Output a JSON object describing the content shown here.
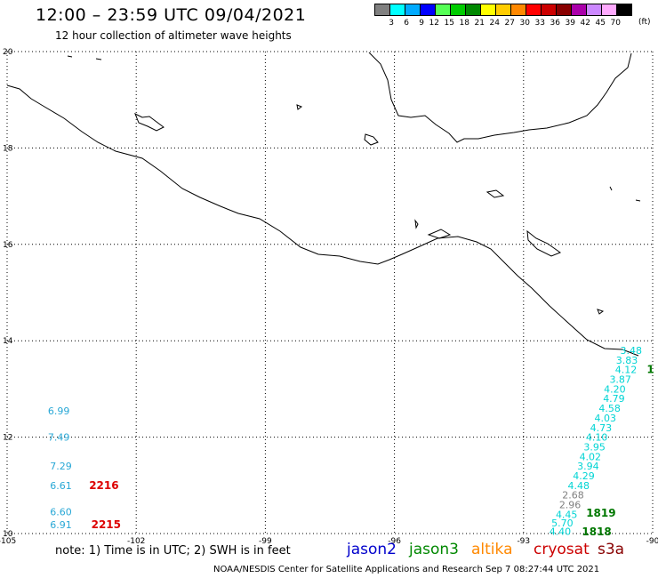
{
  "header": {
    "title": "12:00 – 23:59 UTC 09/04/2021",
    "subtitle": "12 hour collection of altimeter wave heights"
  },
  "colorbar": {
    "unit": "(ft)",
    "swatches": [
      {
        "color": "#808080",
        "label": "3"
      },
      {
        "color": "#00ffff",
        "label": "6"
      },
      {
        "color": "#00aaff",
        "label": "9"
      },
      {
        "color": "#0000ff",
        "label": "12"
      },
      {
        "color": "#55ff55",
        "label": "15"
      },
      {
        "color": "#00cc00",
        "label": "18"
      },
      {
        "color": "#008800",
        "label": "21"
      },
      {
        "color": "#ffff00",
        "label": "24"
      },
      {
        "color": "#ffcc00",
        "label": "27"
      },
      {
        "color": "#ff8800",
        "label": "30"
      },
      {
        "color": "#ff0000",
        "label": "33"
      },
      {
        "color": "#cc0000",
        "label": "36"
      },
      {
        "color": "#880000",
        "label": "39"
      },
      {
        "color": "#aa00aa",
        "label": "42"
      },
      {
        "color": "#cc88ff",
        "label": "45"
      },
      {
        "color": "#ffaaff",
        "label": "70"
      },
      {
        "color": "#000000",
        "label": ""
      }
    ]
  },
  "map": {
    "lon_ticks": [
      "-105",
      "-102",
      "-99",
      "-96",
      "-93",
      "-90"
    ],
    "lat_ticks": [
      "10",
      "12",
      "14",
      "16",
      "18",
      "20"
    ],
    "lon_range": [
      -105,
      -90
    ],
    "lat_range": [
      10,
      20
    ],
    "coast_color": "#000000",
    "grid": "dotted"
  },
  "observations": [
    {
      "text": "6.99",
      "lon": -103.8,
      "lat": 12.55,
      "color": "#29a8d6"
    },
    {
      "text": "7.49",
      "lon": -103.8,
      "lat": 12.0,
      "color": "#29a8d6"
    },
    {
      "text": "7.29",
      "lon": -103.75,
      "lat": 11.4,
      "color": "#29a8d6"
    },
    {
      "text": "6.61",
      "lon": -103.75,
      "lat": 11.0,
      "color": "#29a8d6"
    },
    {
      "text": "6.60",
      "lon": -103.75,
      "lat": 10.45,
      "color": "#29a8d6"
    },
    {
      "text": "6.91",
      "lon": -103.75,
      "lat": 10.18,
      "color": "#29a8d6"
    },
    {
      "text": "3.48",
      "lon": -90.5,
      "lat": 13.8,
      "color": "#00d4d4"
    },
    {
      "text": "3.83",
      "lon": -90.6,
      "lat": 13.6,
      "color": "#00d4d4"
    },
    {
      "text": "4.12",
      "lon": -90.62,
      "lat": 13.4,
      "color": "#00d4d4"
    },
    {
      "text": "3.87",
      "lon": -90.75,
      "lat": 13.2,
      "color": "#00d4d4"
    },
    {
      "text": "4.20",
      "lon": -90.88,
      "lat": 13.0,
      "color": "#00d4d4"
    },
    {
      "text": "4.79",
      "lon": -90.9,
      "lat": 12.8,
      "color": "#00d4d4"
    },
    {
      "text": "4.58",
      "lon": -91.0,
      "lat": 12.6,
      "color": "#00d4d4"
    },
    {
      "text": "4.03",
      "lon": -91.1,
      "lat": 12.4,
      "color": "#00d4d4"
    },
    {
      "text": "4.73",
      "lon": -91.2,
      "lat": 12.2,
      "color": "#00d4d4"
    },
    {
      "text": "4.10",
      "lon": -91.3,
      "lat": 12.0,
      "color": "#00d4d4"
    },
    {
      "text": "3.95",
      "lon": -91.35,
      "lat": 11.8,
      "color": "#00d4d4"
    },
    {
      "text": "4.02",
      "lon": -91.45,
      "lat": 11.6,
      "color": "#00d4d4"
    },
    {
      "text": "3.94",
      "lon": -91.5,
      "lat": 11.4,
      "color": "#00d4d4"
    },
    {
      "text": "4.29",
      "lon": -91.6,
      "lat": 11.2,
      "color": "#00d4d4"
    },
    {
      "text": "4.48",
      "lon": -91.72,
      "lat": 11.0,
      "color": "#00d4d4"
    },
    {
      "text": "2.68",
      "lon": -91.85,
      "lat": 10.8,
      "color": "#808080"
    },
    {
      "text": "2.96",
      "lon": -91.92,
      "lat": 10.6,
      "color": "#808080"
    },
    {
      "text": "4.45",
      "lon": -92.0,
      "lat": 10.4,
      "color": "#00d4d4"
    },
    {
      "text": "5.70",
      "lon": -92.1,
      "lat": 10.22,
      "color": "#00d4d4"
    },
    {
      "text": "4.40",
      "lon": -92.15,
      "lat": 10.05,
      "color": "#00d4d4"
    }
  ],
  "time_labels": [
    {
      "text": "2216",
      "lon": -102.75,
      "lat": 11.0,
      "color": "#dd0000"
    },
    {
      "text": "2215",
      "lon": -102.7,
      "lat": 10.18,
      "color": "#dd0000"
    },
    {
      "text": "1819",
      "lon": -91.2,
      "lat": 10.42,
      "color": "#007700"
    },
    {
      "text": "1818",
      "lon": -91.3,
      "lat": 10.04,
      "color": "#007700"
    },
    {
      "text": "1",
      "lon": -90.05,
      "lat": 13.4,
      "color": "#007700"
    }
  ],
  "footer": {
    "note": "note: 1) Time is in UTC; 2) SWH is in feet",
    "credit": "NOAA/NESDIS Center for Satellite Applications and Research   Sep  7 08:27:44 UTC 2021"
  },
  "satellites": [
    {
      "name": "jason2",
      "color": "#0000cc"
    },
    {
      "name": "jason3",
      "color": "#008800"
    },
    {
      "name": "altika",
      "color": "#ff8800"
    },
    {
      "name": "cryosat",
      "color": "#cc0000"
    },
    {
      "name": "s3a",
      "color": "#880000"
    }
  ]
}
